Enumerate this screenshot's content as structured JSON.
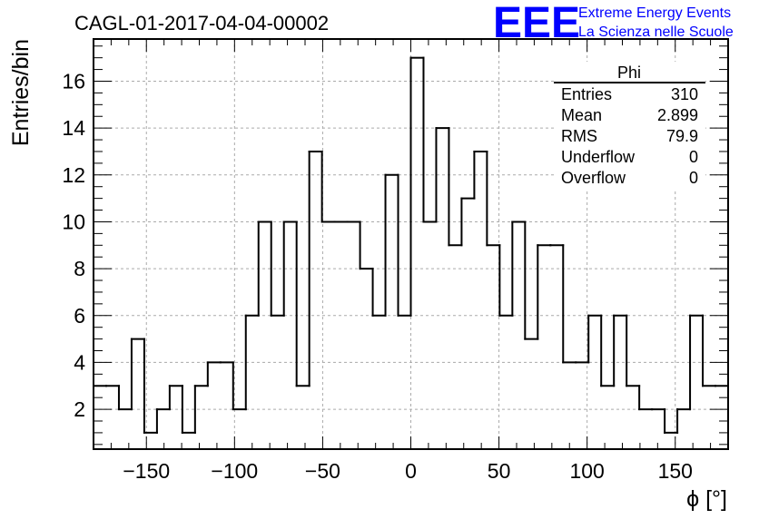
{
  "title": "CAGL-01-2017-04-04-00002",
  "logo": {
    "mark": "EEE",
    "line1": "Extreme Energy Events",
    "line2": "La Scienza nelle Scuole",
    "color": "#0000ff"
  },
  "stats_box": {
    "name": "Phi",
    "rows": [
      {
        "label": "Entries",
        "value": "310"
      },
      {
        "label": "Mean",
        "value": "2.899"
      },
      {
        "label": "RMS",
        "value": "79.9"
      },
      {
        "label": "Underflow",
        "value": "0"
      },
      {
        "label": "Overflow",
        "value": "0"
      }
    ]
  },
  "chart_data": {
    "type": "bar",
    "style": "step-histogram",
    "xlabel": "ϕ [°]",
    "ylabel": "Entries/bin",
    "xlim": [
      -180,
      180
    ],
    "ylim": [
      0.3,
      17.8
    ],
    "grid": true,
    "bin_width": 7.2,
    "bin_edges_start": -180,
    "values": [
      3,
      3,
      2,
      5,
      1,
      2,
      3,
      1,
      3,
      4,
      4,
      2,
      6,
      10,
      6,
      10,
      3,
      13,
      10,
      10,
      10,
      8,
      6,
      12,
      6,
      17,
      10,
      14,
      9,
      11,
      13,
      9,
      6,
      10,
      5,
      9,
      9,
      4,
      4,
      6,
      3,
      6,
      3,
      2,
      2,
      1,
      2,
      6,
      3,
      3
    ],
    "xticks": [
      -150,
      -100,
      -50,
      0,
      50,
      100,
      150
    ],
    "xtick_labels": [
      "−150",
      "−100",
      "−50",
      "0",
      "50",
      "100",
      "150"
    ],
    "yticks": [
      2,
      4,
      6,
      8,
      10,
      12,
      14,
      16
    ],
    "ytick_labels": [
      "2",
      "4",
      "6",
      "8",
      "10",
      "12",
      "14",
      "16"
    ],
    "line_color": "#000000",
    "grid_color": "#aaaaaa"
  }
}
